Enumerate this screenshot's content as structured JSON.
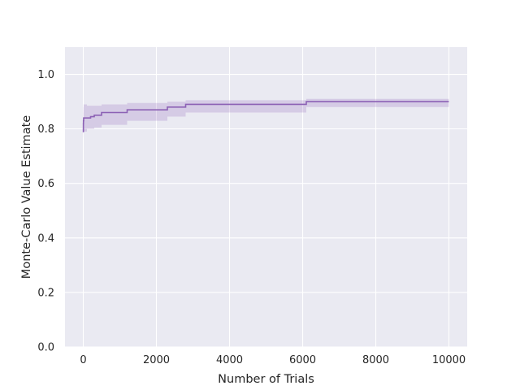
{
  "chart_data": {
    "type": "line",
    "title": "",
    "xlabel": "Number of Trials",
    "ylabel": "Monte-Carlo Value Estimate",
    "xlim": [
      -500,
      10500
    ],
    "ylim": [
      0.0,
      1.1
    ],
    "xticks": [
      0,
      2000,
      4000,
      6000,
      8000,
      10000
    ],
    "xtick_labels": [
      "0",
      "2000",
      "4000",
      "6000",
      "8000",
      "10000"
    ],
    "yticks": [
      0.0,
      0.2,
      0.4,
      0.6,
      0.8,
      1.0
    ],
    "ytick_labels": [
      "0.0",
      "0.2",
      "0.4",
      "0.6",
      "0.8",
      "1.0"
    ],
    "grid": true,
    "style": "seaborn-darkgrid",
    "colors": {
      "line": "#8c61b5",
      "band": "#8c61b5",
      "plot_bg": "#eaeaf2",
      "grid": "#ffffff"
    },
    "series": [
      {
        "x": [
          0,
          2,
          3,
          5,
          10,
          15,
          25,
          40,
          60,
          100,
          150,
          200,
          300,
          500,
          1200,
          2300,
          2800,
          6100,
          10000
        ],
        "y": [
          0.8,
          0.79,
          0.82,
          0.83,
          0.84,
          0.84,
          0.84,
          0.84,
          0.84,
          0.84,
          0.84,
          0.845,
          0.85,
          0.86,
          0.87,
          0.88,
          0.89,
          0.9,
          0.9
        ],
        "lower": [
          0.77,
          0.77,
          0.78,
          0.79,
          0.79,
          0.79,
          0.79,
          0.79,
          0.79,
          0.8,
          0.8,
          0.8,
          0.805,
          0.815,
          0.83,
          0.845,
          0.86,
          0.88,
          0.88
        ],
        "upper": [
          0.86,
          0.86,
          0.87,
          0.88,
          0.89,
          0.89,
          0.89,
          0.89,
          0.89,
          0.885,
          0.885,
          0.885,
          0.885,
          0.89,
          0.895,
          0.9,
          0.905,
          0.91,
          0.91
        ]
      }
    ]
  }
}
